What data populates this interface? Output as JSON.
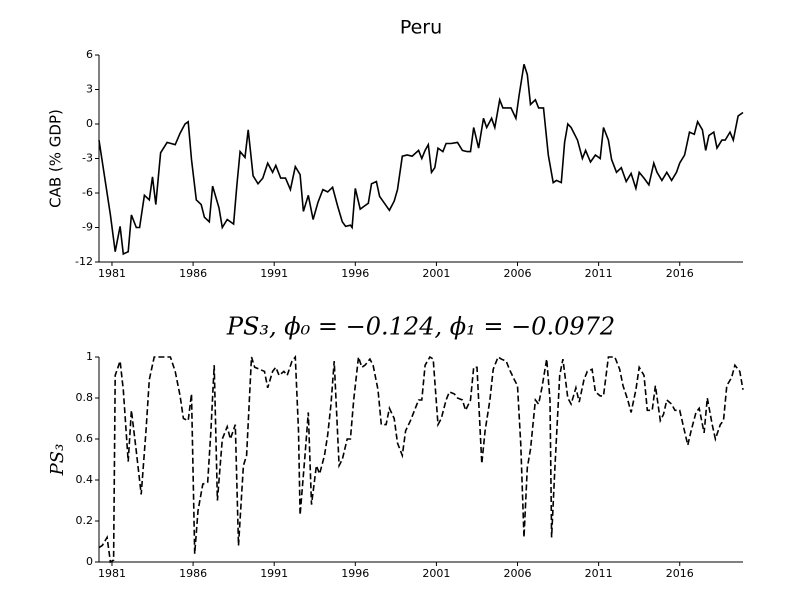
{
  "chart_data": [
    {
      "type": "line",
      "title": "Peru",
      "ylabel": "CAB (% GDP)",
      "xlim": [
        1980.2,
        2019.9
      ],
      "xticks": [
        1981,
        1986,
        1991,
        1996,
        2001,
        2006,
        2011,
        2016
      ],
      "ylim": [
        -12,
        6
      ],
      "yticks": [
        -12,
        -9,
        -6,
        -3,
        0,
        3,
        6
      ],
      "x": [
        1980.2,
        1980.9,
        1981.2,
        1981.5,
        1981.7,
        1982.0,
        1982.2,
        1982.5,
        1982.7,
        1983.0,
        1983.3,
        1983.5,
        1983.7,
        1984.0,
        1984.4,
        1984.9,
        1985.2,
        1985.5,
        1985.7,
        1985.9,
        1986.2,
        1986.5,
        1986.7,
        1987.0,
        1987.2,
        1987.6,
        1987.8,
        1988.1,
        1988.5,
        1988.7,
        1988.9,
        1989.2,
        1989.4,
        1989.7,
        1990.0,
        1990.3,
        1990.6,
        1990.9,
        1991.1,
        1991.4,
        1991.7,
        1992.0,
        1992.3,
        1992.6,
        1992.8,
        1993.1,
        1993.4,
        1993.7,
        1994.0,
        1994.3,
        1994.6,
        1994.9,
        1995.2,
        1995.4,
        1995.7,
        1995.8,
        1996.0,
        1996.3,
        1996.6,
        1996.8,
        1997.0,
        1997.3,
        1997.5,
        1997.8,
        1998.1,
        1998.4,
        1998.6,
        1998.9,
        1999.2,
        1999.5,
        1999.9,
        2000.1,
        2000.3,
        2000.5,
        2000.7,
        2000.9,
        2001.1,
        2001.4,
        2001.6,
        2001.9,
        2002.3,
        2002.6,
        2002.9,
        2003.1,
        2003.3,
        2003.6,
        2003.9,
        2004.1,
        2004.4,
        2004.6,
        2004.9,
        2005.1,
        2005.4,
        2005.6,
        2005.9,
        2006.1,
        2006.4,
        2006.6,
        2006.8,
        2007.1,
        2007.3,
        2007.6,
        2007.9,
        2008.2,
        2008.4,
        2008.7,
        2008.9,
        2009.1,
        2009.3,
        2009.7,
        2010.0,
        2010.2,
        2010.5,
        2010.8,
        2011.1,
        2011.3,
        2011.6,
        2011.8,
        2012.1,
        2012.4,
        2012.7,
        2013.0,
        2013.3,
        2013.5,
        2013.8,
        2014.1,
        2014.4,
        2014.6,
        2014.9,
        2015.2,
        2015.5,
        2015.8,
        2016.0,
        2016.3,
        2016.6,
        2016.9,
        2017.1,
        2017.4,
        2017.6,
        2017.8,
        2018.1,
        2018.3,
        2018.6,
        2018.8,
        2019.1,
        2019.3,
        2019.6,
        2019.9
      ],
      "series": [
        {
          "color": "#000000",
          "linestyle": "solid",
          "values": [
            -1.4,
            -7.9,
            -11.1,
            -8.9,
            -11.3,
            -11.1,
            -7.9,
            -9.0,
            -9.0,
            -6.2,
            -6.6,
            -4.6,
            -7.0,
            -2.5,
            -1.6,
            -1.8,
            -0.8,
            0.0,
            0.2,
            -3.1,
            -6.6,
            -7.0,
            -8.1,
            -8.5,
            -5.4,
            -7.3,
            -9.0,
            -8.3,
            -8.7,
            -5.3,
            -2.4,
            -2.9,
            -0.5,
            -4.5,
            -5.2,
            -4.7,
            -3.4,
            -4.2,
            -3.6,
            -4.7,
            -4.7,
            -5.7,
            -3.7,
            -4.4,
            -7.6,
            -6.2,
            -8.3,
            -6.8,
            -5.7,
            -5.9,
            -5.5,
            -7.1,
            -8.5,
            -8.9,
            -8.8,
            -9.0,
            -5.6,
            -7.4,
            -7.1,
            -6.9,
            -5.2,
            -5.0,
            -6.3,
            -6.9,
            -7.5,
            -6.7,
            -5.7,
            -2.8,
            -2.7,
            -2.8,
            -2.3,
            -3.0,
            -2.3,
            -1.8,
            -4.2,
            -3.8,
            -2.1,
            -2.4,
            -1.7,
            -1.7,
            -1.6,
            -2.3,
            -2.4,
            -2.4,
            -0.3,
            -2.1,
            0.5,
            -0.3,
            0.5,
            -0.3,
            2.1,
            1.4,
            1.4,
            1.4,
            0.5,
            2.5,
            5.2,
            4.3,
            1.7,
            2.1,
            1.4,
            1.4,
            -2.7,
            -5.1,
            -4.9,
            -5.1,
            -1.6,
            0.0,
            -0.3,
            -1.4,
            -3.0,
            -2.3,
            -3.3,
            -2.7,
            -3.0,
            -0.3,
            -1.4,
            -3.1,
            -4.2,
            -3.8,
            -5.0,
            -4.3,
            -5.6,
            -4.2,
            -4.7,
            -5.3,
            -3.4,
            -4.2,
            -4.9,
            -4.2,
            -4.9,
            -4.2,
            -3.4,
            -2.7,
            -0.7,
            -0.9,
            0.2,
            -0.5,
            -2.3,
            -1.0,
            -0.7,
            -2.1,
            -1.4,
            -1.4,
            -0.7,
            -1.4,
            0.7,
            1.0
          ]
        }
      ]
    },
    {
      "type": "line",
      "title": "PS₃, ϕ₀ = −0.124, ϕ₁ = −0.0972",
      "ylabel": "PS₃",
      "xlim": [
        1980.2,
        2019.9
      ],
      "xticks": [
        1981,
        1986,
        1991,
        1996,
        2001,
        2006,
        2011,
        2016
      ],
      "ylim": [
        0,
        1
      ],
      "yticks": [
        0,
        0.2,
        0.4,
        0.6,
        0.8,
        1
      ],
      "x": [
        1980.2,
        1980.4,
        1980.7,
        1980.9,
        1981.1,
        1981.2,
        1981.5,
        1981.7,
        1982.0,
        1982.2,
        1982.5,
        1982.8,
        1983.1,
        1983.3,
        1983.6,
        1984.6,
        1984.9,
        1985.2,
        1985.4,
        1985.7,
        1985.9,
        1986.1,
        1986.3,
        1986.6,
        1986.9,
        1987.1,
        1987.3,
        1987.5,
        1987.8,
        1988.1,
        1988.3,
        1988.6,
        1988.8,
        1989.1,
        1989.3,
        1989.6,
        1989.8,
        1990.1,
        1990.4,
        1990.6,
        1990.9,
        1991.1,
        1991.3,
        1991.6,
        1991.8,
        1992.1,
        1992.3,
        1992.5,
        1992.6,
        1992.9,
        1993.1,
        1993.3,
        1993.6,
        1993.8,
        1994.1,
        1994.3,
        1994.5,
        1994.7,
        1995.0,
        1995.2,
        1995.5,
        1995.7,
        1995.9,
        1996.2,
        1996.4,
        1996.6,
        1996.9,
        1997.1,
        1997.4,
        1997.6,
        1997.9,
        1998.1,
        1998.4,
        1998.6,
        1998.9,
        1999.1,
        1999.4,
        1999.6,
        1999.9,
        2000.1,
        2000.3,
        2000.6,
        2000.8,
        2001.1,
        2001.3,
        2001.6,
        2001.8,
        2002.1,
        2002.3,
        2002.6,
        2002.8,
        2003.1,
        2003.3,
        2003.5,
        2003.8,
        2004.0,
        2004.3,
        2004.5,
        2004.8,
        2005.0,
        2005.3,
        2005.5,
        2005.8,
        2006.0,
        2006.2,
        2006.4,
        2006.6,
        2006.8,
        2007.1,
        2007.3,
        2007.5,
        2007.8,
        2008.0,
        2008.1,
        2008.3,
        2008.6,
        2008.8,
        2009.1,
        2009.3,
        2009.6,
        2009.8,
        2010.1,
        2010.3,
        2010.6,
        2010.8,
        2011.1,
        2011.3,
        2011.6,
        2012.0,
        2012.3,
        2012.5,
        2012.8,
        2013.0,
        2013.3,
        2013.5,
        2013.8,
        2014.0,
        2014.3,
        2014.5,
        2014.8,
        2015.0,
        2015.2,
        2015.5,
        2015.7,
        2016.0,
        2016.2,
        2016.5,
        2016.7,
        2017.0,
        2017.2,
        2017.5,
        2017.7,
        2018.0,
        2018.2,
        2018.5,
        2018.7,
        2018.9,
        2019.2,
        2019.4,
        2019.7,
        2019.9
      ],
      "series": [
        {
          "color": "#000000",
          "linestyle": "dashed",
          "values": [
            0.07,
            0.08,
            0.12,
            0.0,
            0.01,
            0.91,
            0.98,
            0.84,
            0.49,
            0.74,
            0.54,
            0.33,
            0.64,
            0.89,
            1.0,
            1.0,
            0.93,
            0.81,
            0.7,
            0.69,
            0.82,
            0.04,
            0.25,
            0.38,
            0.39,
            0.64,
            0.96,
            0.3,
            0.6,
            0.66,
            0.6,
            0.67,
            0.08,
            0.47,
            0.52,
            1.0,
            0.95,
            0.94,
            0.93,
            0.85,
            0.93,
            0.95,
            0.91,
            0.93,
            0.91,
            0.98,
            1.0,
            0.64,
            0.23,
            0.52,
            0.73,
            0.28,
            0.47,
            0.43,
            0.52,
            0.62,
            0.77,
            0.98,
            0.47,
            0.5,
            0.6,
            0.6,
            0.79,
            1.0,
            0.95,
            0.96,
            0.99,
            0.96,
            0.84,
            0.67,
            0.67,
            0.75,
            0.7,
            0.58,
            0.52,
            0.64,
            0.69,
            0.73,
            0.79,
            0.79,
            0.96,
            1.0,
            0.99,
            0.67,
            0.7,
            0.79,
            0.83,
            0.82,
            0.8,
            0.79,
            0.74,
            0.79,
            0.95,
            0.95,
            0.48,
            0.64,
            0.79,
            0.94,
            1.0,
            0.99,
            0.98,
            0.94,
            0.89,
            0.86,
            0.57,
            0.12,
            0.46,
            0.55,
            0.79,
            0.77,
            0.85,
            0.99,
            0.79,
            0.12,
            0.45,
            0.91,
            0.99,
            0.8,
            0.77,
            0.85,
            0.78,
            0.89,
            0.93,
            0.94,
            0.83,
            0.81,
            0.81,
            1.0,
            1.0,
            0.94,
            0.86,
            0.79,
            0.73,
            0.84,
            0.95,
            0.91,
            0.74,
            0.74,
            0.86,
            0.69,
            0.72,
            0.79,
            0.77,
            0.74,
            0.74,
            0.67,
            0.57,
            0.64,
            0.73,
            0.75,
            0.63,
            0.8,
            0.67,
            0.6,
            0.67,
            0.69,
            0.86,
            0.9,
            0.96,
            0.93,
            0.84
          ]
        }
      ]
    }
  ]
}
